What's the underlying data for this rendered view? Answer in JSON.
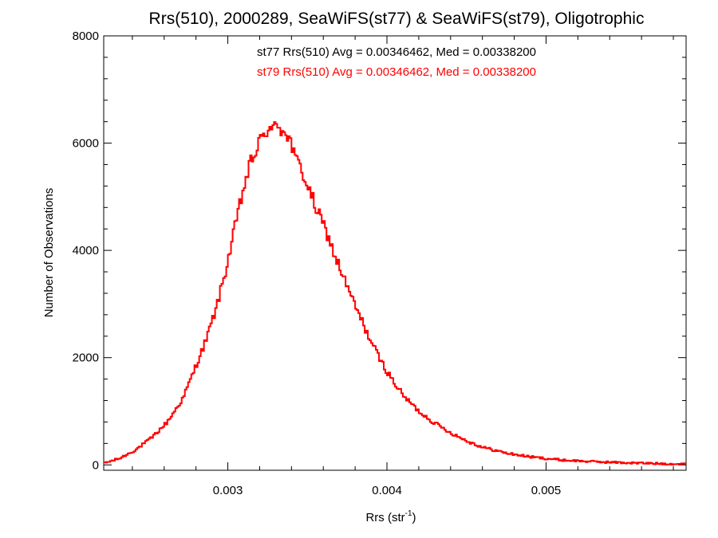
{
  "chart_data": {
    "type": "line",
    "style": "step-histogram",
    "title": "Rrs(510), 2000289, SeaWiFS(st77) & SeaWiFS(st79), Oligotrophic",
    "xlabel_main": "Rrs (str",
    "xlabel_sup": "-1",
    "xlabel_close": ")",
    "ylabel": "Number of Observations",
    "xlim": [
      0.00222,
      0.00588
    ],
    "ylim": [
      -100,
      8000
    ],
    "xticks": [
      0.003,
      0.004,
      0.005
    ],
    "xtick_labels": [
      "0.003",
      "0.004",
      "0.005"
    ],
    "xminor_step": 0.0002,
    "yticks": [
      0,
      2000,
      4000,
      6000,
      8000
    ],
    "ytick_labels": [
      "0",
      "2000",
      "4000",
      "6000",
      "8000"
    ],
    "yminor_step": 400,
    "grid": false,
    "annotations": [
      {
        "text": "st77 Rrs(510) Avg = 0.00346462, Med = 0.00338200",
        "color": "#000000"
      },
      {
        "text": "st79 Rrs(510) Avg = 0.00346462, Med = 0.00338200",
        "color": "#ff0000"
      }
    ],
    "series": [
      {
        "color": "#ff0000",
        "x": [
          0.00222,
          0.00232,
          0.00242,
          0.00252,
          0.00262,
          0.00272,
          0.0028,
          0.00286,
          0.00292,
          0.00296,
          0.003,
          0.00304,
          0.00308,
          0.00312,
          0.00316,
          0.0032,
          0.00322,
          0.00324,
          0.00326,
          0.00328,
          0.0033,
          0.00332,
          0.00334,
          0.00336,
          0.00338,
          0.0034,
          0.00342,
          0.00346,
          0.0035,
          0.00354,
          0.00358,
          0.00362,
          0.00366,
          0.0037,
          0.00374,
          0.00378,
          0.00384,
          0.0039,
          0.00396,
          0.00402,
          0.0041,
          0.0042,
          0.0043,
          0.0044,
          0.0045,
          0.0046,
          0.00475,
          0.0049,
          0.0051,
          0.0053,
          0.0055,
          0.0057,
          0.00588
        ],
        "y": [
          30,
          120,
          280,
          500,
          800,
          1250,
          1850,
          2300,
          2850,
          3300,
          3800,
          4350,
          4900,
          5400,
          5750,
          6000,
          6100,
          6250,
          6300,
          6150,
          6350,
          6400,
          6200,
          6300,
          6100,
          6000,
          5700,
          5550,
          5200,
          4900,
          4600,
          4350,
          4000,
          3700,
          3400,
          3100,
          2700,
          2300,
          1950,
          1650,
          1300,
          1000,
          780,
          600,
          450,
          330,
          220,
          150,
          90,
          60,
          40,
          25,
          15
        ]
      }
    ]
  }
}
